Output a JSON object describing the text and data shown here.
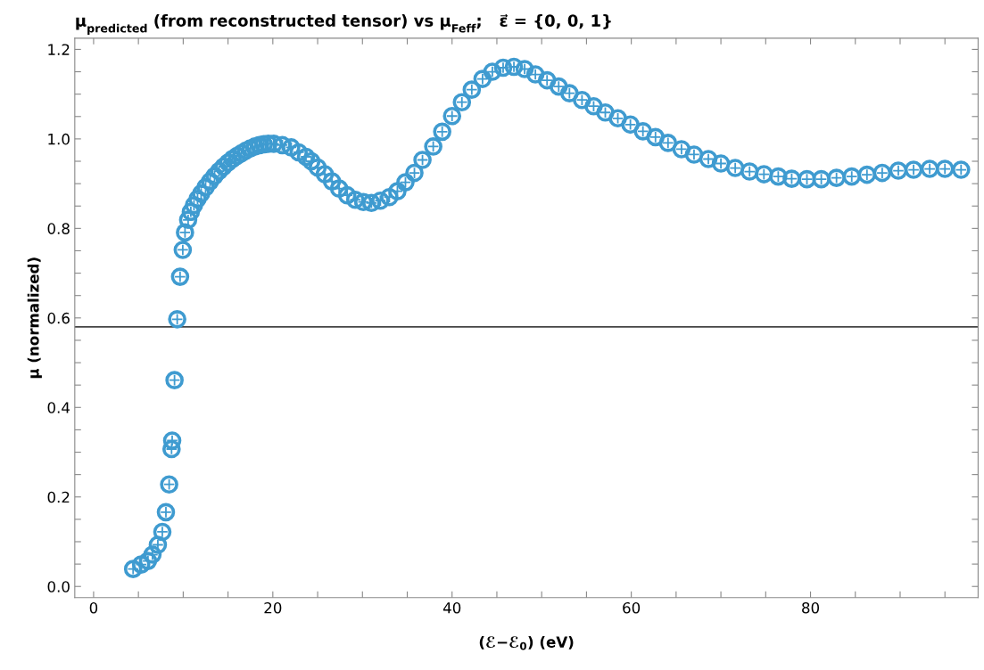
{
  "chart_data": {
    "type": "scatter",
    "title": "μ$_{predicted}$ (from reconstructed tensor) vs μ$_{Feff}$;   ε⃗ = {0, 0, 1}",
    "xlabel": "(ℰ−ℰ$_{0}$) (eV)",
    "ylabel": "μ (normalized)",
    "x": [
      4.41,
      5.31,
      6.07,
      6.57,
      7.17,
      7.67,
      8.07,
      8.43,
      8.7,
      8.77,
      9.03,
      9.33,
      9.65,
      9.95,
      10.2,
      10.55,
      10.85,
      11.2,
      11.6,
      12.0,
      12.5,
      13.0,
      13.5,
      14.0,
      14.5,
      15.0,
      15.5,
      16.0,
      16.5,
      17.0,
      17.5,
      18.0,
      18.5,
      19.0,
      19.5,
      20.1,
      21.06,
      22.05,
      22.88,
      23.7,
      24.3,
      25.0,
      25.8,
      26.6,
      27.4,
      28.3,
      29.2,
      30.1,
      31.0,
      32.0,
      33.0,
      33.9,
      34.8,
      35.8,
      36.7,
      37.9,
      38.9,
      40.0,
      41.1,
      42.2,
      43.4,
      44.5,
      45.7,
      46.9,
      48.1,
      49.3,
      50.6,
      51.9,
      53.1,
      54.5,
      55.8,
      57.1,
      58.5,
      59.9,
      61.3,
      62.7,
      64.1,
      65.6,
      67.0,
      68.6,
      70.0,
      71.6,
      73.2,
      74.8,
      76.4,
      77.9,
      79.6,
      81.2,
      82.9,
      84.6,
      86.3,
      88.0,
      89.8,
      91.5,
      93.3,
      95.0,
      96.8
    ],
    "series": [
      {
        "marker": "cross",
        "color": "#3f9bd0",
        "values": [
          0.039,
          0.049,
          0.057,
          0.071,
          0.093,
          0.122,
          0.166,
          0.228,
          0.307,
          0.326,
          0.461,
          0.597,
          0.692,
          0.752,
          0.791,
          0.819,
          0.837,
          0.852,
          0.866,
          0.878,
          0.892,
          0.905,
          0.917,
          0.928,
          0.938,
          0.947,
          0.955,
          0.962,
          0.968,
          0.974,
          0.979,
          0.983,
          0.986,
          0.988,
          0.989,
          0.989,
          0.986,
          0.981,
          0.97,
          0.96,
          0.95,
          0.936,
          0.921,
          0.905,
          0.889,
          0.874,
          0.864,
          0.859,
          0.857,
          0.862,
          0.87,
          0.883,
          0.903,
          0.924,
          0.953,
          0.983,
          1.016,
          1.051,
          1.082,
          1.11,
          1.134,
          1.15,
          1.159,
          1.161,
          1.156,
          1.144,
          1.131,
          1.117,
          1.102,
          1.087,
          1.073,
          1.059,
          1.046,
          1.032,
          1.017,
          1.004,
          0.991,
          0.977,
          0.965,
          0.955,
          0.945,
          0.935,
          0.927,
          0.921,
          0.916,
          0.911,
          0.91,
          0.91,
          0.913,
          0.916,
          0.92,
          0.924,
          0.929,
          0.931,
          0.933,
          0.933,
          0.931
        ]
      },
      {
        "marker": "circle",
        "color": "#3f9bd0",
        "values": [
          0.039,
          0.049,
          0.057,
          0.071,
          0.093,
          0.122,
          0.166,
          0.228,
          0.307,
          0.326,
          0.461,
          0.597,
          0.692,
          0.752,
          0.791,
          0.819,
          0.837,
          0.852,
          0.866,
          0.878,
          0.892,
          0.905,
          0.917,
          0.928,
          0.938,
          0.947,
          0.955,
          0.962,
          0.968,
          0.974,
          0.979,
          0.983,
          0.986,
          0.988,
          0.989,
          0.989,
          0.986,
          0.981,
          0.97,
          0.96,
          0.95,
          0.936,
          0.921,
          0.905,
          0.889,
          0.874,
          0.864,
          0.859,
          0.857,
          0.862,
          0.87,
          0.883,
          0.903,
          0.924,
          0.953,
          0.983,
          1.016,
          1.051,
          1.082,
          1.11,
          1.134,
          1.15,
          1.159,
          1.161,
          1.156,
          1.144,
          1.131,
          1.117,
          1.102,
          1.087,
          1.073,
          1.059,
          1.046,
          1.032,
          1.017,
          1.004,
          0.991,
          0.977,
          0.965,
          0.955,
          0.945,
          0.935,
          0.927,
          0.921,
          0.916,
          0.911,
          0.91,
          0.91,
          0.913,
          0.916,
          0.92,
          0.924,
          0.929,
          0.931,
          0.933,
          0.933,
          0.931
        ]
      }
    ],
    "ref_lines": [
      {
        "axis": "y",
        "value": 0.58,
        "color": "#444444"
      }
    ],
    "xlim": [
      -2.1,
      98.7
    ],
    "xticks": [
      0,
      {
        "value": 5,
        "label": null
      },
      {
        "value": 10,
        "label": null
      },
      {
        "value": 15,
        "label": null
      },
      20,
      {
        "value": 25,
        "label": null
      },
      {
        "value": 30,
        "label": null
      },
      {
        "value": 35,
        "label": null
      },
      40,
      {
        "value": 45,
        "label": null
      },
      {
        "value": 50,
        "label": null
      },
      {
        "value": 55,
        "label": null
      },
      60,
      {
        "value": 65,
        "label": null
      },
      {
        "value": 70,
        "label": null
      },
      {
        "value": 75,
        "label": null
      },
      80,
      {
        "value": 85,
        "label": null
      },
      {
        "value": 90,
        "label": null
      },
      {
        "value": 95,
        "label": null
      }
    ],
    "ylim": [
      -0.025,
      1.225
    ],
    "yticks": [
      {
        "value": 0,
        "label": "0.0"
      },
      {
        "value": 0.05,
        "label": null
      },
      {
        "value": 0.1,
        "label": null
      },
      {
        "value": 0.15,
        "label": null
      },
      {
        "value": 0.2,
        "label": "0.2"
      },
      {
        "value": 0.25,
        "label": null
      },
      {
        "value": 0.3,
        "label": null
      },
      {
        "value": 0.35,
        "label": null
      },
      {
        "value": 0.4,
        "label": "0.4"
      },
      {
        "value": 0.45,
        "label": null
      },
      {
        "value": 0.5,
        "label": null
      },
      {
        "value": 0.55,
        "label": null
      },
      {
        "value": 0.6,
        "label": "0.6"
      },
      {
        "value": 0.65,
        "label": null
      },
      {
        "value": 0.7,
        "label": null
      },
      {
        "value": 0.75,
        "label": null
      },
      {
        "value": 0.8,
        "label": "0.8"
      },
      {
        "value": 0.85,
        "label": null
      },
      {
        "value": 0.9,
        "label": null
      },
      {
        "value": 0.95,
        "label": null
      },
      {
        "value": 1.0,
        "label": "1.0"
      },
      {
        "value": 1.05,
        "label": null
      },
      {
        "value": 1.1,
        "label": null
      },
      {
        "value": 1.15,
        "label": null
      },
      {
        "value": 1.2,
        "label": "1.2"
      }
    ],
    "grid": false,
    "legend": false
  }
}
